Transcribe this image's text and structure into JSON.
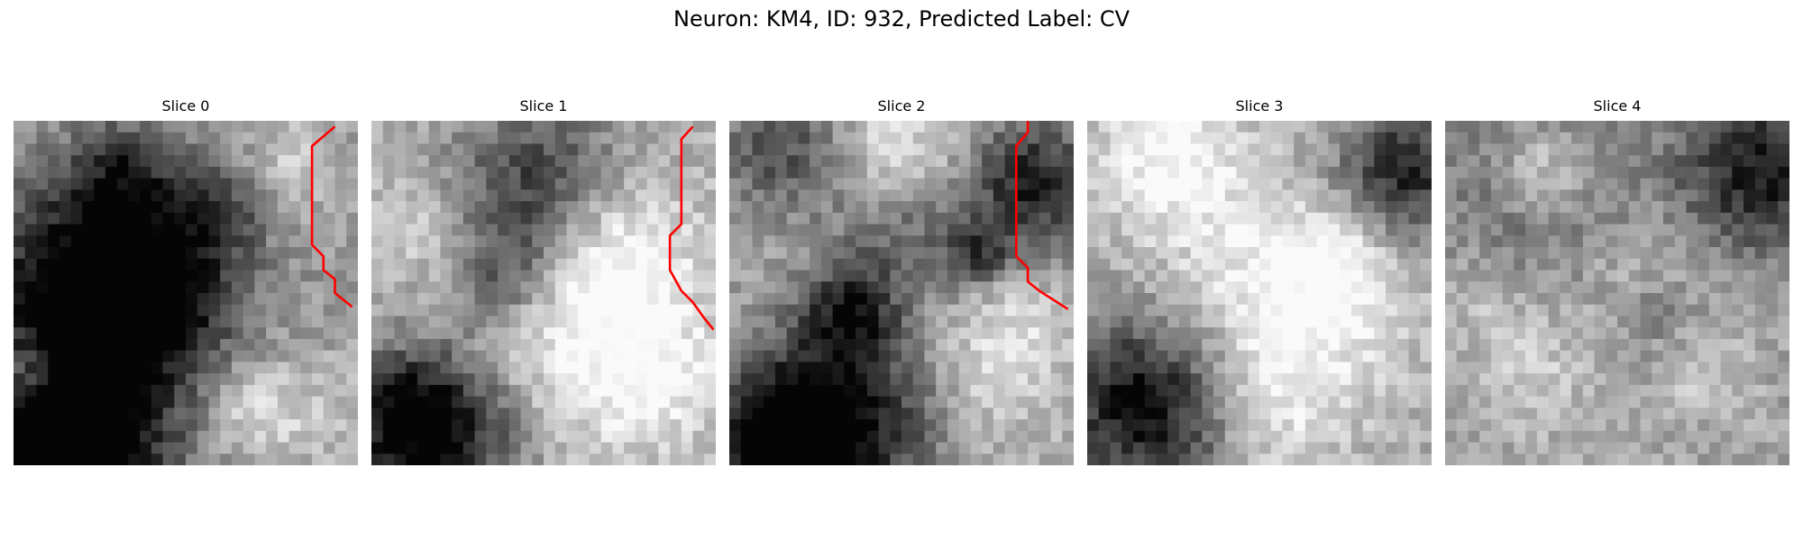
{
  "figure": {
    "title": "Neuron: KM4, ID: 932, Predicted Label: CV"
  },
  "colors": {
    "contour": "#ff0000",
    "background": "#ffffff"
  },
  "slices": [
    {
      "title": "Slice 0",
      "has_contour": true
    },
    {
      "title": "Slice 1",
      "has_contour": true
    },
    {
      "title": "Slice 2",
      "has_contour": true
    },
    {
      "title": "Slice 3",
      "has_contour": false
    },
    {
      "title": "Slice 4",
      "has_contour": false
    }
  ]
}
